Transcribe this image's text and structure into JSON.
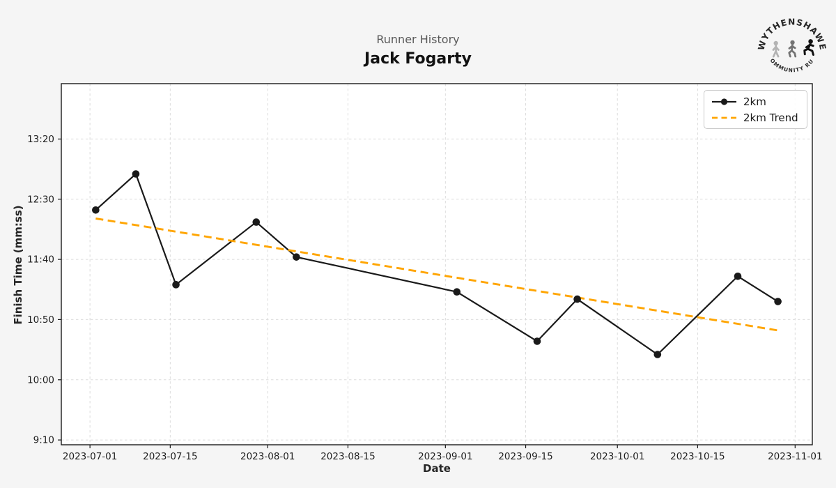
{
  "logo": {
    "arc_top": "WYTHENSHAWE",
    "arc_bottom": "COMMUNITY RUN"
  },
  "chart_data": {
    "type": "line",
    "subtitle": "Runner History",
    "title": "Jack Fogarty",
    "xlabel": "Date",
    "ylabel": "Finish Time (mm:ss)",
    "x_tick_labels": [
      "2023-07-01",
      "2023-07-15",
      "2023-08-01",
      "2023-08-15",
      "2023-09-01",
      "2023-09-15",
      "2023-10-01",
      "2023-10-15",
      "2023-11-01"
    ],
    "y_tick_labels": [
      "9:10",
      "10:00",
      "10:50",
      "11:40",
      "12:30",
      "13:20"
    ],
    "xlim": [
      "2023-06-26",
      "2023-11-04"
    ],
    "ylim_mmss": [
      "9:06",
      "14:06"
    ],
    "grid": true,
    "legend_position": "upper right",
    "series": [
      {
        "name": "2km",
        "style": "solid-markers",
        "color": "#1a1a1a",
        "x": [
          "2023-07-02",
          "2023-07-09",
          "2023-07-16",
          "2023-07-30",
          "2023-08-06",
          "2023-09-03",
          "2023-09-17",
          "2023-09-24",
          "2023-10-08",
          "2023-10-22",
          "2023-10-29"
        ],
        "y": [
          "12:21",
          "12:51",
          "11:19",
          "12:11",
          "11:42",
          "11:13",
          "10:32",
          "11:07",
          "10:21",
          "11:26",
          "11:05"
        ]
      },
      {
        "name": "2km Trend",
        "style": "dashed",
        "color": "#FFA500",
        "x": [
          "2023-07-02",
          "2023-10-29"
        ],
        "y": [
          "12:14",
          "10:41"
        ]
      }
    ],
    "colors": {
      "background": "#f5f5f5",
      "plot_background": "#ffffff",
      "grid": "#dcdcdc",
      "axis": "#1a1a1a",
      "tick_text": "#1f1f1f",
      "subtitle_text": "#595959",
      "title_text": "#111111"
    }
  }
}
